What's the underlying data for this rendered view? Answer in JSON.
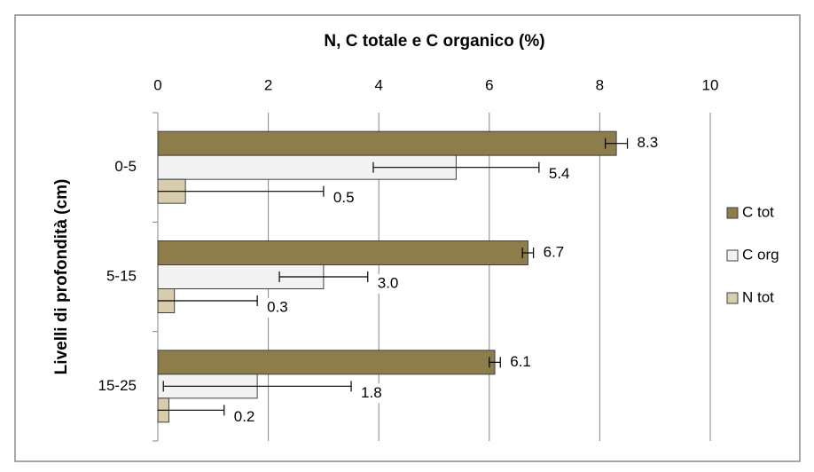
{
  "chart_data": {
    "type": "bar",
    "orientation": "horizontal",
    "title": "N, C totale e C organico (%)",
    "y_label": "Livelli di profondità (cm)",
    "categories": [
      "0-5",
      "5-15",
      "15-25"
    ],
    "series": [
      {
        "name": "C tot",
        "color": "#8c7d4b",
        "values": [
          8.3,
          6.7,
          6.1
        ],
        "value_labels": [
          "8.3",
          "6.7",
          "6.1"
        ],
        "errors": [
          0.2,
          0.1,
          0.1
        ]
      },
      {
        "name": "C org",
        "color": "#f2f2f2",
        "values": [
          5.4,
          3.0,
          1.8
        ],
        "value_labels": [
          "5.4",
          "3.0",
          "1.8"
        ],
        "errors": [
          1.5,
          0.8,
          1.7
        ]
      },
      {
        "name": "N tot",
        "color": "#d7ccac",
        "values": [
          0.5,
          0.3,
          0.2
        ],
        "value_labels": [
          "0.5",
          "0.3",
          "0.2"
        ],
        "errors": [
          2.5,
          1.5,
          1.0
        ]
      }
    ],
    "xlim": [
      0,
      10
    ],
    "xticks": [
      0,
      2,
      4,
      6,
      8,
      10
    ],
    "grid": true,
    "legend": "right"
  }
}
